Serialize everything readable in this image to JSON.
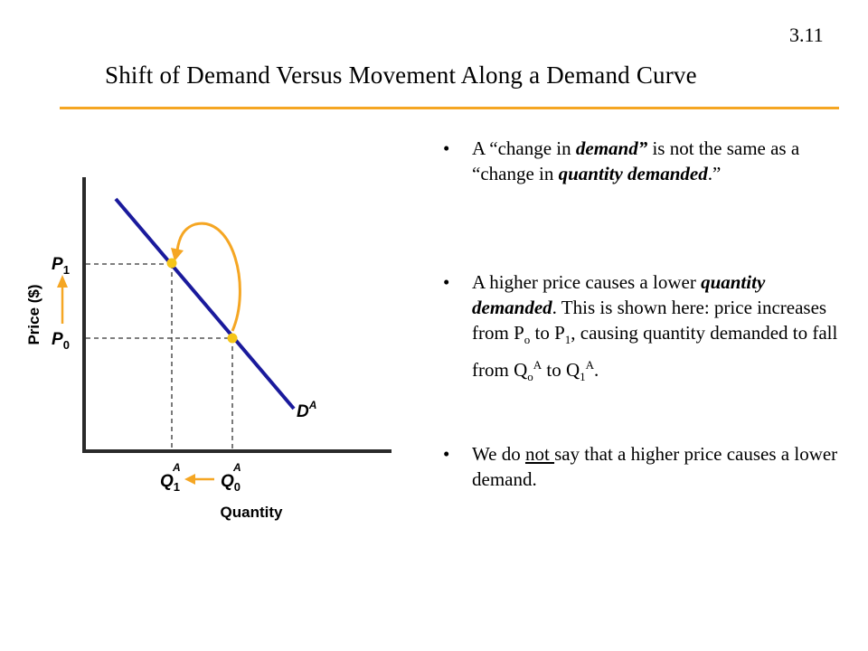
{
  "slide_number": "3.11",
  "title": "Shift of Demand Versus Movement Along a Demand Curve",
  "colors": {
    "accent": "#f5a623",
    "curve": "#1a1a9c",
    "axis": "#2a2a2a"
  },
  "graph": {
    "y_axis_label": "Price ($)",
    "x_axis_label": "Quantity",
    "p1_main": "P",
    "p1_sub": "1",
    "p0_main": "P",
    "p0_sub": "0",
    "q1_main": "Q",
    "q1_sub": "1",
    "q1_sup": "A",
    "q0_main": "Q",
    "q0_sub": "0",
    "q0_sup": "A",
    "curve_main": "D",
    "curve_sup": "A"
  },
  "bullets": {
    "b1": {
      "t1": "A “change in ",
      "t2": "demand”",
      "t3": " is not the same as a “change in ",
      "t4": "quantity demanded",
      "t5": ".”"
    },
    "b2": {
      "t1": "A higher price causes a lower ",
      "t2": "quantity demanded",
      "t3": ". This is shown here: price increases from P",
      "t4": "o",
      "t5": " to P",
      "t6": "1",
      "t7": ", causing quantity demanded to fall from Q",
      "t8": "o",
      "t9": "A",
      "t10": " to Q",
      "t11": "1",
      "t12": "A",
      "t13": "."
    },
    "b3": {
      "t1": "We do ",
      "t2": "not ",
      "t3": "say that a higher price causes a lower demand."
    }
  }
}
